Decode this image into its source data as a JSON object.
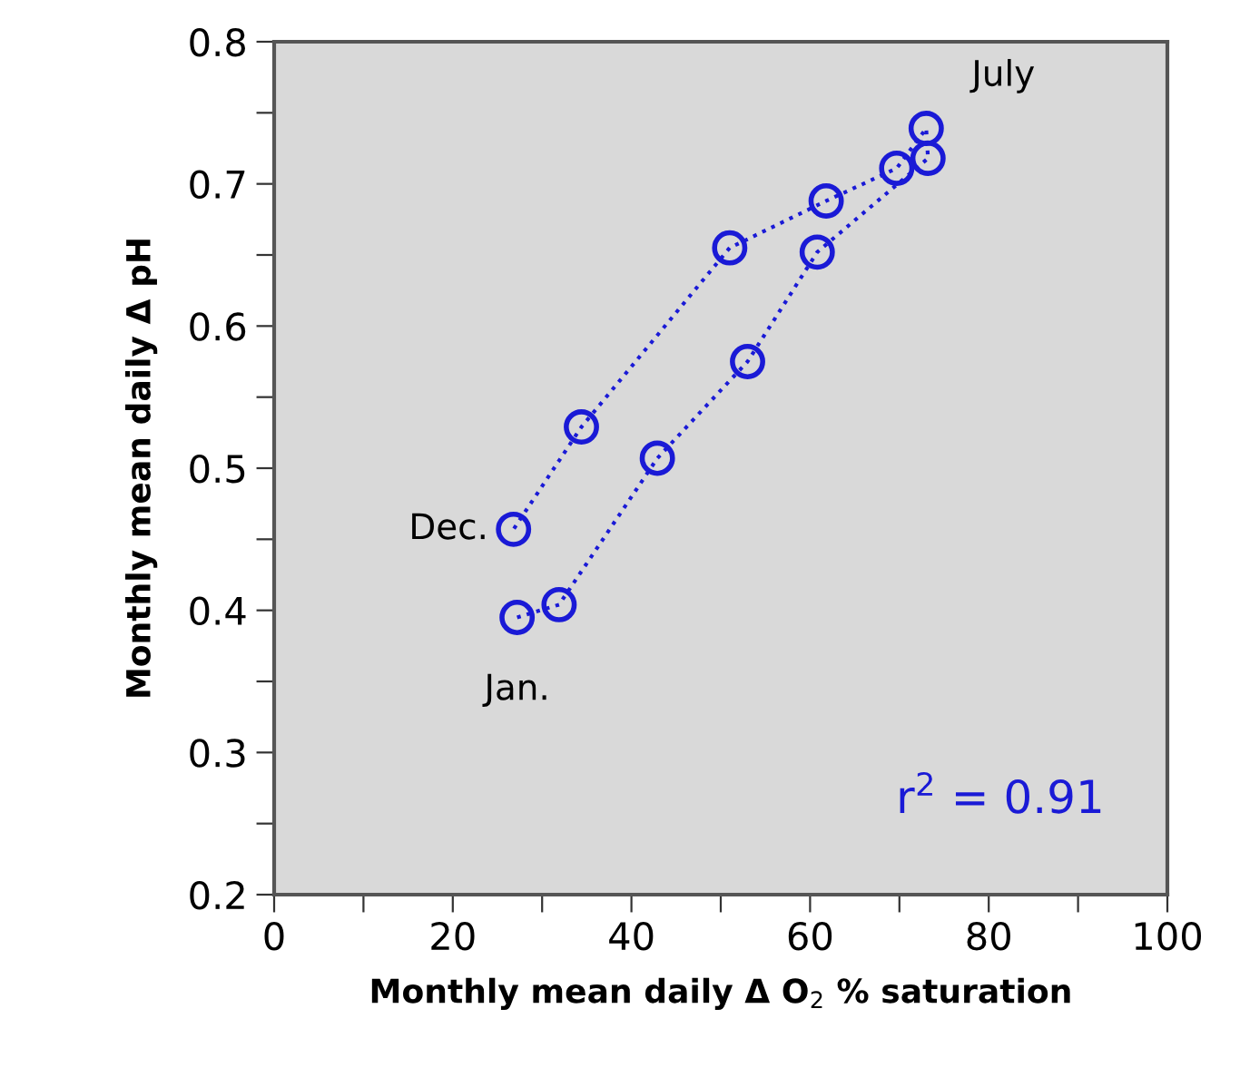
{
  "chart_data": {
    "type": "line",
    "xlabel": "Monthly mean daily Δ O$_{2}$ % saturation",
    "ylabel": "Monthly mean daily Δ pH",
    "x": [
      27.2,
      31.9,
      42.9,
      53.0,
      60.8,
      73.2,
      73.0,
      69.7,
      61.8,
      51.0,
      34.4,
      26.8
    ],
    "series": [
      {
        "color": "#1a1ad6",
        "values": [
          0.395,
          0.404,
          0.507,
          0.575,
          0.652,
          0.718,
          0.739,
          0.711,
          0.688,
          0.655,
          0.529,
          0.457
        ]
      }
    ],
    "marker": "circle",
    "line_style": "dotted",
    "grid": false,
    "legend": false,
    "xlim": [
      0,
      100
    ],
    "xticks": [
      0,
      {
        "value": 10,
        "label": null
      },
      20,
      {
        "value": 30,
        "label": null
      },
      40,
      {
        "value": 50,
        "label": null
      },
      60,
      {
        "value": 70,
        "label": null
      },
      80,
      {
        "value": 90,
        "label": null
      },
      100
    ],
    "ylim": [
      0.2,
      0.8
    ],
    "yticks": [
      0.2,
      {
        "value": 0.25,
        "label": null
      },
      0.3,
      {
        "value": 0.35,
        "label": null
      },
      0.4,
      {
        "value": 0.45,
        "label": null
      },
      0.5,
      {
        "value": 0.55,
        "label": null
      },
      0.6,
      {
        "value": 0.65,
        "label": null
      },
      0.7,
      {
        "value": 0.75,
        "label": null
      },
      0.8
    ],
    "annotations": [
      {
        "text": "July",
        "x": 73.0,
        "y": 0.739
      },
      {
        "text": "Dec.",
        "x": 26.8,
        "y": 0.457
      },
      {
        "text": "Jan.",
        "x": 27.2,
        "y": 0.395
      },
      "r$^{2}$ = 0.91"
    ]
  }
}
